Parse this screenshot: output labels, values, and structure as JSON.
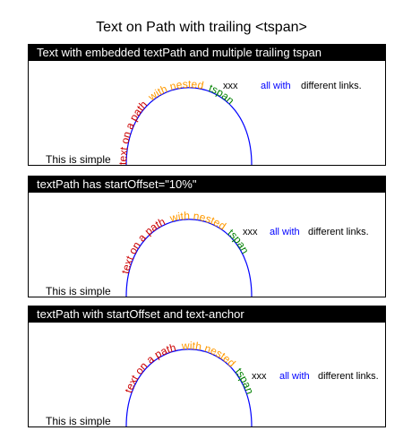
{
  "page": {
    "title": "Text on Path with trailing <tspan>"
  },
  "colors": {
    "path_stroke": "#0000ff",
    "segment_path_text": "#cc0000",
    "segment_nested": "#ff9900",
    "segment_tspan": "#008000",
    "link_blue": "#0000ff",
    "header_bg": "#000000",
    "header_fg": "#ffffff"
  },
  "panels": [
    {
      "header": "Text with embedded textPath and multiple trailing tspan",
      "simple_text": "This is simple",
      "path_text_segments": {
        "part1": "text on a path",
        "part2": "with nested",
        "part3": "tspan"
      },
      "trailing": {
        "xxx": "xxx",
        "all_with": "all with",
        "rest": "different links."
      }
    },
    {
      "header": "textPath has startOffset=\"10%\"",
      "simple_text": "This is simple",
      "path_text_segments": {
        "part1": "text on a path",
        "part2": "with nested",
        "part3": "tspan"
      },
      "trailing": {
        "xxx": "xxx",
        "all_with": "all with",
        "rest": "different links."
      }
    },
    {
      "header": "textPath with startOffset and text-anchor",
      "simple_text": "This is simple",
      "path_text_segments": {
        "part1": "text on a path",
        "part2": "with nested",
        "part3": "tspan"
      },
      "trailing": {
        "xxx": "xxx",
        "all_with": "all with",
        "rest": "different links."
      }
    }
  ]
}
